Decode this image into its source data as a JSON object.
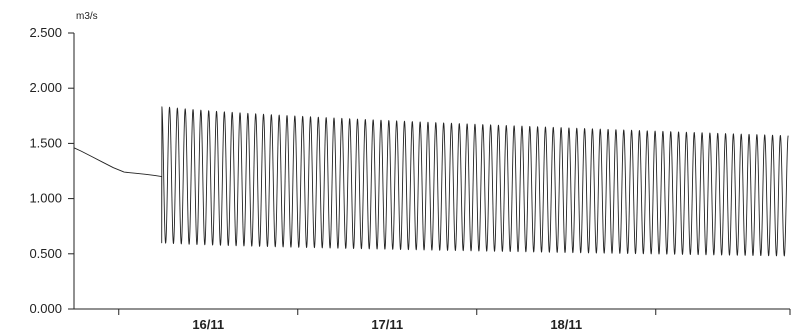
{
  "chart_data": {
    "type": "line",
    "title": "",
    "xlabel": "",
    "ylabel": "m3/s",
    "ylim": [
      0,
      2.5
    ],
    "yticks": [
      "0.000",
      "0.500",
      "1.000",
      "1.500",
      "2.000",
      "2.500"
    ],
    "xticks": [
      "16/11",
      "17/11",
      "18/11"
    ],
    "grid": false,
    "legend": false,
    "line_color": "#222222",
    "series": [
      {
        "segments": [
          {
            "kind": "steady-decline",
            "start_day": 15.0,
            "end_day": 15.49,
            "points": [
              [
                15.0,
                1.46
              ],
              [
                15.04,
                1.43
              ],
              [
                15.1,
                1.38
              ],
              [
                15.16,
                1.33
              ],
              [
                15.22,
                1.28
              ],
              [
                15.28,
                1.24
              ],
              [
                15.34,
                1.23
              ],
              [
                15.4,
                1.22
              ],
              [
                15.45,
                1.21
              ],
              [
                15.49,
                1.2
              ]
            ]
          },
          {
            "kind": "oscillation",
            "start_day": 15.49,
            "end_day": 18.99,
            "cycles": 80,
            "peaks_start": 1.84,
            "peaks_end": 1.57,
            "troughs_start": 0.6,
            "troughs_end": 0.48
          }
        ]
      }
    ]
  }
}
